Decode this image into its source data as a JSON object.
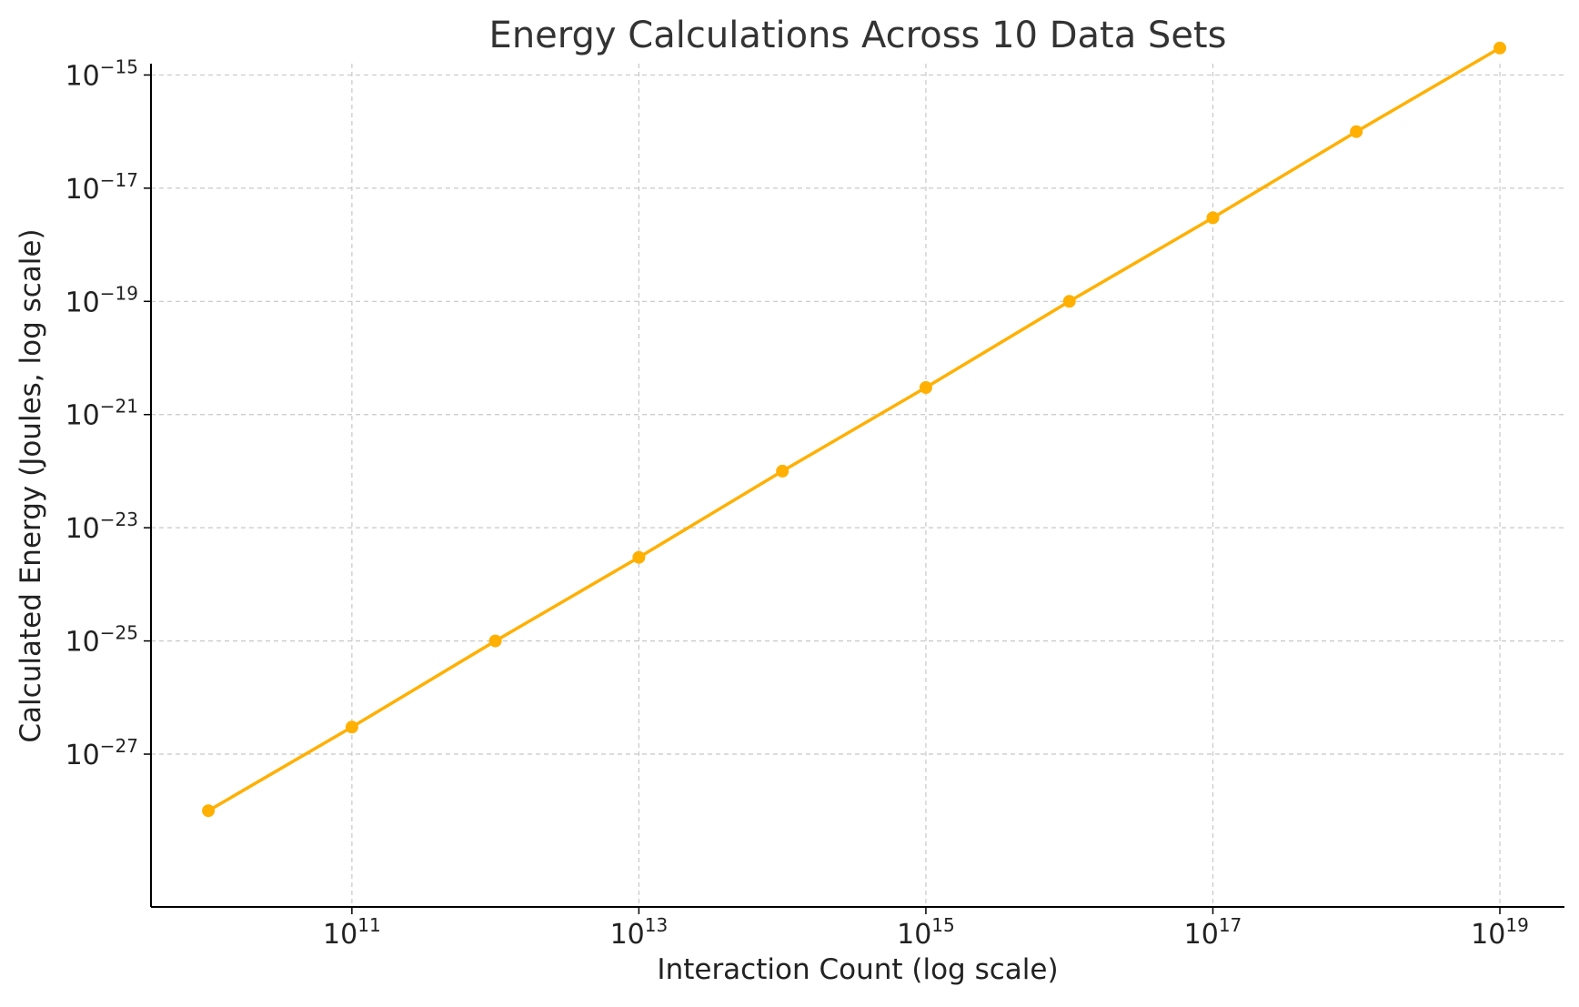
{
  "chart_data": {
    "type": "line",
    "title": "Energy Calculations Across 10 Data Sets",
    "xlabel": "Interaction Count (log scale)",
    "ylabel": "Calculated Energy (Joules, log scale)",
    "x_scale": "log",
    "y_scale": "log",
    "xlim_exponent": [
      9.6,
      19.45
    ],
    "ylim_exponent": [
      -29.7,
      -14.8
    ],
    "x_ticks": [
      {
        "label_base": "10",
        "label_exp": "11",
        "value": 100000000000.0
      },
      {
        "label_base": "10",
        "label_exp": "13",
        "value": 10000000000000.0
      },
      {
        "label_base": "10",
        "label_exp": "15",
        "value": 1000000000000000.0
      },
      {
        "label_base": "10",
        "label_exp": "17",
        "value": 1e+17
      },
      {
        "label_base": "10",
        "label_exp": "19",
        "value": 1e+19
      }
    ],
    "y_ticks": [
      {
        "label_base": "10",
        "label_exp": "−15",
        "value": 1e-15
      },
      {
        "label_base": "10",
        "label_exp": "−17",
        "value": 1e-17
      },
      {
        "label_base": "10",
        "label_exp": "−19",
        "value": 1e-19
      },
      {
        "label_base": "10",
        "label_exp": "−21",
        "value": 1e-21
      },
      {
        "label_base": "10",
        "label_exp": "−23",
        "value": 1e-23
      },
      {
        "label_base": "10",
        "label_exp": "−25",
        "value": 1e-25
      },
      {
        "label_base": "10",
        "label_exp": "−27",
        "value": 1e-27
      }
    ],
    "grid": true,
    "series": [
      {
        "color": "#FFB000",
        "x": [
          10000000000.0,
          100000000000.0,
          1000000000000.0,
          10000000000000.0,
          100000000000000.0,
          1000000000000000.0,
          1e+16,
          1e+17,
          1e+18,
          1e+19
        ],
        "y": [
          1e-28,
          3e-27,
          1e-25,
          3e-24,
          1e-22,
          3e-21,
          1e-19,
          3e-18,
          1e-16,
          3e-15
        ]
      }
    ]
  }
}
